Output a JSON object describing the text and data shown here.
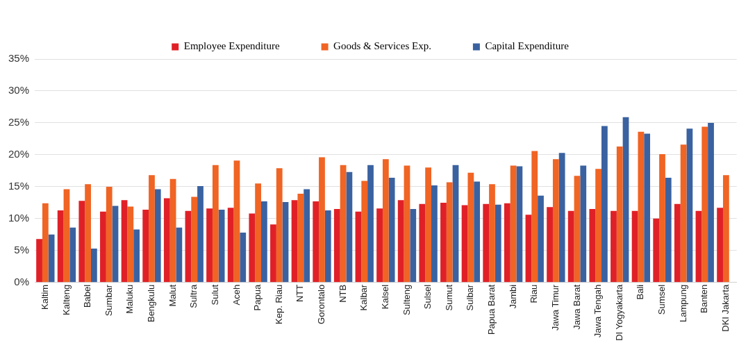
{
  "chart_data": {
    "type": "bar",
    "categories": [
      "Kaltim",
      "Kalteng",
      "Babel",
      "Sumbar",
      "Maluku",
      "Bengkulu",
      "Malut",
      "Sultra",
      "Sulut",
      "Aceh",
      "Papua",
      "Kep. Riau",
      "NTT",
      "Gorontalo",
      "NTB",
      "Kalbar",
      "Kalsel",
      "Sulteng",
      "Sulsel",
      "Sumut",
      "Sulbar",
      "Papua Barat",
      "Jambi",
      "Riau",
      "Jawa Timur",
      "Jawa Barat",
      "Jawa Tengah",
      "DI Yogyakarta",
      "Bali",
      "Sumsel",
      "Lampung",
      "Banten",
      "DKI Jakarta"
    ],
    "series": [
      {
        "name": "Employee Expenditure",
        "color": "#e02027",
        "values": [
          6.8,
          11.3,
          12.8,
          11.1,
          12.9,
          11.4,
          13.2,
          11.2,
          11.6,
          11.7,
          10.8,
          9.1,
          12.9,
          12.7,
          11.5,
          11.1,
          11.6,
          12.9,
          12.3,
          12.5,
          12.1,
          12.3,
          12.4,
          10.6,
          11.8,
          11.2,
          11.5,
          11.2,
          11.2,
          10.0,
          12.3,
          11.2,
          11.7
        ]
      },
      {
        "name": "Goods & Services Exp.",
        "color": "#f06424",
        "values": [
          12.4,
          14.6,
          15.4,
          15.0,
          11.9,
          16.8,
          16.2,
          13.4,
          18.4,
          19.1,
          15.5,
          17.9,
          13.9,
          19.6,
          18.4,
          15.9,
          19.3,
          18.3,
          18.0,
          15.7,
          17.2,
          15.4,
          18.3,
          20.6,
          19.3,
          16.7,
          17.8,
          21.3,
          23.6,
          20.1,
          21.6,
          24.4,
          16.8
        ]
      },
      {
        "name": "Capital Expenditure",
        "color": "#3a62a0",
        "values": [
          7.5,
          8.6,
          5.3,
          12.0,
          8.3,
          14.6,
          8.6,
          15.1,
          11.4,
          7.8,
          12.7,
          12.6,
          14.6,
          11.3,
          17.3,
          18.4,
          16.4,
          11.5,
          15.2,
          18.4,
          15.8,
          12.2,
          18.2,
          13.6,
          20.3,
          18.3,
          24.5,
          25.9,
          23.3,
          16.4,
          24.1,
          25.0,
          null
        ]
      }
    ],
    "ylim": [
      0,
      35
    ],
    "yticks": [
      {
        "value": 0,
        "label": "0%"
      },
      {
        "value": 5,
        "label": "5%"
      },
      {
        "value": 10,
        "label": "10%"
      },
      {
        "value": 15,
        "label": "15%"
      },
      {
        "value": 20,
        "label": "20%"
      },
      {
        "value": 25,
        "label": "25%"
      },
      {
        "value": 30,
        "label": "30%"
      },
      {
        "value": 35,
        "label": "35%"
      }
    ],
    "grid": "y",
    "legend": "top"
  }
}
